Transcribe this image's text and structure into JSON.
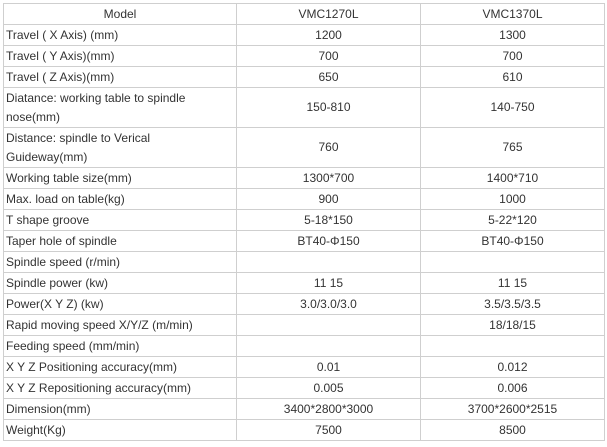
{
  "header": {
    "label": "Model",
    "model_a": "VMC1270L",
    "model_b": "VMC1370L"
  },
  "rows": [
    {
      "label": "Travel ( X Axis) (mm)",
      "a": "1200",
      "b": "1300"
    },
    {
      "label": "Travel ( Y Axis)(mm)",
      "a": "700",
      "b": "700"
    },
    {
      "label": "Travel ( Z Axis)(mm)",
      "a": "650",
      "b": "610"
    },
    {
      "label": "Diatance: working table to  spindle nose(mm)",
      "a": "150-810",
      "b": "140-750"
    },
    {
      "label": "Distance: spindle to Verical Guideway(mm)",
      "a": "760",
      "b": "765"
    },
    {
      "label": "Working table size(mm)",
      "a": "1300*700",
      "b": "1400*710"
    },
    {
      "label": "Max. load on table(kg)",
      "a": "900",
      "b": "1000"
    },
    {
      "label": "T shape groove",
      "a": "5-18*150",
      "b": "5-22*120"
    },
    {
      "label": "Taper hole of spindle",
      "a": "BT40-Φ150",
      "b": "BT40-Φ150"
    },
    {
      "label": "Spindle speed (r/min)",
      "a": "",
      "b": ""
    },
    {
      "label": "Spindle power (kw)",
      "a": "11 15",
      "b": "11 15"
    },
    {
      "label": "Power(X Y Z) (kw)",
      "a": "3.0/3.0/3.0",
      "b": "3.5/3.5/3.5"
    },
    {
      "label": "Rapid moving speed X/Y/Z (m/min)",
      "a": "",
      "b": "18/18/15"
    },
    {
      "label": "Feeding speed (mm/min)",
      "a": "",
      "b": ""
    },
    {
      "label": "X Y Z Positioning accuracy(mm)",
      "a": "0.01",
      "b": "0.012"
    },
    {
      "label": "X Y Z Repositioning accuracy(mm)",
      "a": "0.005",
      "b": "0.006"
    },
    {
      "label": "Dimension(mm)",
      "a": "3400*2800*3000",
      "b": "3700*2600*2515"
    },
    {
      "label": "Weight(Kg)",
      "a": "7500",
      "b": "8500"
    }
  ]
}
